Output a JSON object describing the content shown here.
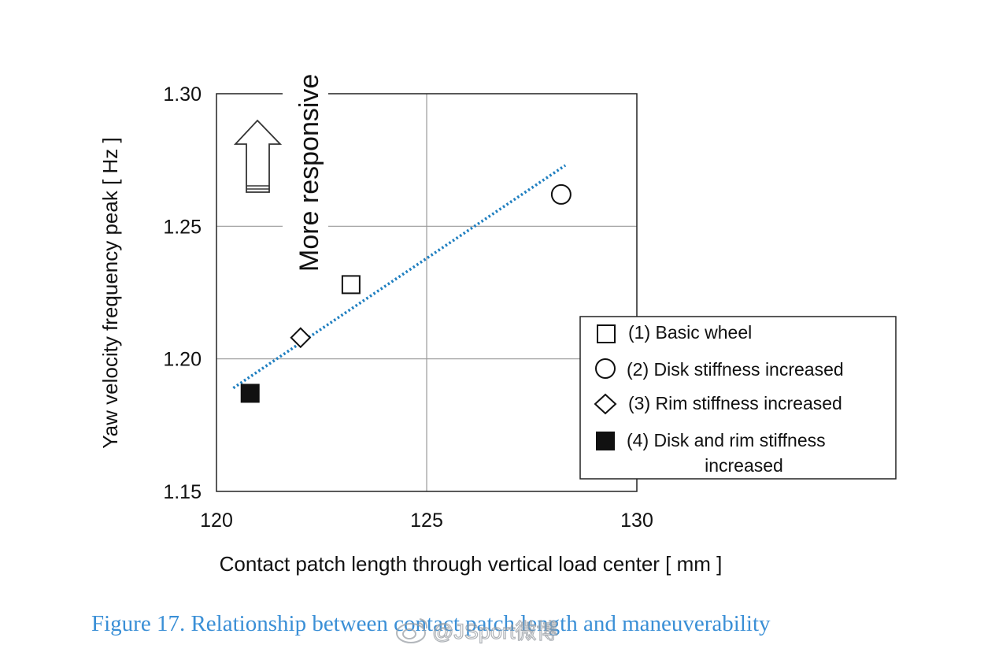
{
  "chart_data": {
    "type": "scatter",
    "xlabel": "Contact patch length through vertical load center [ mm ]",
    "ylabel": "Yaw velocity frequency peak [ Hz ]",
    "xlim": [
      120,
      130
    ],
    "ylim": [
      1.15,
      1.3
    ],
    "xticks": [
      "120",
      "125",
      "130"
    ],
    "yticks": [
      "1.15",
      "1.20",
      "1.25",
      "1.30"
    ],
    "grid": true,
    "legend_position": "right",
    "series": [
      {
        "name": "(1) Basic wheel",
        "marker": "square-open",
        "x": 123.2,
        "y": 1.228
      },
      {
        "name": "(2) Disk stiffness increased",
        "marker": "circle-open",
        "x": 128.2,
        "y": 1.262
      },
      {
        "name": "(3) Rim stiffness increased",
        "marker": "diamond-open",
        "x": 122.0,
        "y": 1.208
      },
      {
        "name": "(4) Disk and rim stiffness increased",
        "marker": "square-filled",
        "x": 120.8,
        "y": 1.187
      }
    ],
    "trendline": {
      "style": "dotted",
      "color": "#1f7fc0",
      "x": [
        120.4,
        128.3
      ],
      "y": [
        1.189,
        1.273
      ]
    },
    "annotation": {
      "text": "More responsive",
      "icon": "up-arrow-icon"
    }
  },
  "legend": {
    "labels": [
      [
        "(1) Basic wheel"
      ],
      [
        "(2) Disk stiffness increased"
      ],
      [
        "(3) Rim stiffness increased"
      ],
      [
        "(4) Disk and rim stiffness",
        "increased"
      ]
    ]
  },
  "caption": "Figure 17. Relationship between contact patch length and maneuverability",
  "watermark": "@JSport微博"
}
